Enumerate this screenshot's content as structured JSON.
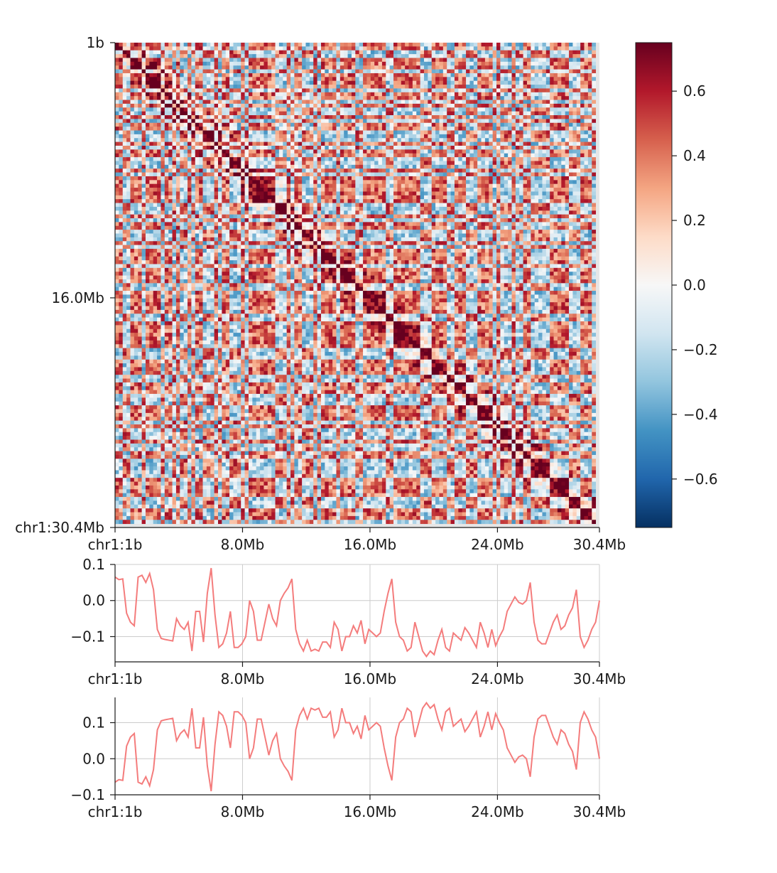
{
  "chart_data": [
    {
      "type": "heatmap",
      "title": "",
      "region": {
        "chrom": "chr1",
        "start_bp": 1,
        "end_bp": 30400000
      },
      "y_tick_labels": [
        "1b",
        "16.0Mb",
        "chr1:30.4Mb"
      ],
      "y_tick_values_mb": [
        0,
        16.0,
        30.4
      ],
      "x_tick_labels": [
        "chr1:1b",
        "8.0Mb",
        "16.0Mb",
        "24.0Mb",
        "30.4Mb"
      ],
      "x_tick_values_mb": [
        0,
        8.0,
        16.0,
        24.0,
        30.4
      ],
      "grid": false,
      "colorscale": "RdBu_r",
      "colorbar": {
        "position": "right",
        "vmin": -0.75,
        "vmax": 0.75,
        "ticks": [
          0.6,
          0.4,
          0.2,
          0.0,
          -0.2,
          -0.4,
          -0.6
        ],
        "tick_labels": [
          "0.6",
          "0.4",
          "0.2",
          "0.0",
          "−0.2",
          "−0.4",
          "−0.6"
        ]
      },
      "bin_count": 127,
      "compartment_pattern": [
        1,
        1,
        0,
        0,
        1,
        1,
        1,
        0,
        1,
        1,
        1,
        1,
        0,
        1,
        1,
        0,
        1,
        0,
        0,
        1,
        0,
        1,
        1,
        0,
        0,
        0,
        1,
        0,
        1,
        1,
        0,
        0,
        0,
        1,
        0,
        1,
        1,
        1,
        1,
        1,
        1,
        1,
        0,
        0,
        0,
        1,
        0,
        1,
        1,
        0,
        0,
        0,
        1,
        0,
        1,
        1,
        1,
        1,
        0,
        1,
        1,
        1,
        1,
        0,
        0,
        1,
        1,
        1,
        1,
        1,
        1,
        0,
        0,
        1,
        1,
        1,
        1,
        1,
        1,
        1,
        0,
        0,
        0,
        1,
        1,
        1,
        1,
        0,
        0,
        1,
        1,
        1,
        0,
        0,
        0,
        1,
        1,
        1,
        1,
        0,
        1,
        0,
        0,
        0,
        1,
        0,
        0,
        1,
        1,
        0,
        0,
        0,
        0,
        0,
        1,
        1,
        1,
        1,
        1,
        0,
        0,
        0,
        1,
        1,
        1,
        0,
        0
      ]
    },
    {
      "type": "line",
      "series": [
        {
          "values": [
            0.065,
            0.058,
            0.06,
            -0.035,
            -0.06,
            -0.07,
            0.065,
            0.07,
            0.05,
            0.075,
            0.03,
            -0.08,
            -0.105,
            -0.108,
            -0.11,
            -0.112,
            -0.05,
            -0.07,
            -0.08,
            -0.06,
            -0.14,
            -0.03,
            -0.03,
            -0.115,
            0.02,
            0.09,
            -0.04,
            -0.13,
            -0.12,
            -0.09,
            -0.03,
            -0.13,
            -0.13,
            -0.12,
            -0.1,
            0.0,
            -0.03,
            -0.11,
            -0.11,
            -0.06,
            -0.01,
            -0.05,
            -0.07,
            0.0,
            0.02,
            0.035,
            0.06,
            -0.08,
            -0.12,
            -0.14,
            -0.11,
            -0.14,
            -0.135,
            -0.14,
            -0.115,
            -0.115,
            -0.13,
            -0.06,
            -0.08,
            -0.14,
            -0.1,
            -0.1,
            -0.07,
            -0.09,
            -0.055,
            -0.12,
            -0.08,
            -0.09,
            -0.1,
            -0.09,
            -0.03,
            0.02,
            0.06,
            -0.06,
            -0.1,
            -0.11,
            -0.14,
            -0.13,
            -0.06,
            -0.1,
            -0.14,
            -0.155,
            -0.14,
            -0.15,
            -0.11,
            -0.08,
            -0.13,
            -0.14,
            -0.09,
            -0.1,
            -0.11,
            -0.075,
            -0.09,
            -0.11,
            -0.13,
            -0.06,
            -0.09,
            -0.13,
            -0.08,
            -0.125,
            -0.1,
            -0.08,
            -0.03,
            -0.01,
            0.01,
            -0.005,
            -0.01,
            0.0,
            0.05,
            -0.06,
            -0.11,
            -0.12,
            -0.12,
            -0.09,
            -0.06,
            -0.04,
            -0.08,
            -0.07,
            -0.04,
            -0.02,
            0.03,
            -0.1,
            -0.13,
            -0.11,
            -0.08,
            -0.06,
            0.0
          ]
        }
      ],
      "x_tick_labels": [
        "chr1:1b",
        "8.0Mb",
        "16.0Mb",
        "24.0Mb",
        "30.4Mb"
      ],
      "x_tick_values_mb": [
        0,
        8.0,
        16.0,
        24.0,
        30.4
      ],
      "y_tick_labels": [
        "0.1",
        "0.0",
        "−0.1"
      ],
      "y_tick_values": [
        0.1,
        0.0,
        -0.1
      ],
      "ylim": [
        -0.17,
        0.1
      ],
      "grid": true,
      "line_color": "#f47c7c"
    },
    {
      "type": "line",
      "series": [
        {
          "values": [
            -0.065,
            -0.058,
            -0.06,
            0.035,
            0.06,
            0.07,
            -0.065,
            -0.07,
            -0.05,
            -0.075,
            -0.03,
            0.08,
            0.105,
            0.108,
            0.11,
            0.112,
            0.05,
            0.07,
            0.08,
            0.06,
            0.14,
            0.03,
            0.03,
            0.115,
            -0.02,
            -0.09,
            0.04,
            0.13,
            0.12,
            0.09,
            0.03,
            0.13,
            0.13,
            0.12,
            0.1,
            0.0,
            0.03,
            0.11,
            0.11,
            0.06,
            0.01,
            0.05,
            0.07,
            0.0,
            -0.02,
            -0.035,
            -0.06,
            0.08,
            0.12,
            0.14,
            0.11,
            0.14,
            0.135,
            0.14,
            0.115,
            0.115,
            0.13,
            0.06,
            0.08,
            0.14,
            0.1,
            0.1,
            0.07,
            0.09,
            0.055,
            0.12,
            0.08,
            0.09,
            0.1,
            0.09,
            0.03,
            -0.02,
            -0.06,
            0.06,
            0.1,
            0.11,
            0.14,
            0.13,
            0.06,
            0.1,
            0.14,
            0.155,
            0.14,
            0.15,
            0.11,
            0.08,
            0.13,
            0.14,
            0.09,
            0.1,
            0.11,
            0.075,
            0.09,
            0.11,
            0.13,
            0.06,
            0.09,
            0.13,
            0.08,
            0.125,
            0.1,
            0.08,
            0.03,
            0.01,
            -0.01,
            0.005,
            0.01,
            0.0,
            -0.05,
            0.06,
            0.11,
            0.12,
            0.12,
            0.09,
            0.06,
            0.04,
            0.08,
            0.07,
            0.04,
            0.02,
            -0.03,
            0.1,
            0.13,
            0.11,
            0.08,
            0.06,
            0.0
          ]
        }
      ],
      "x_tick_labels": [
        "chr1:1b",
        "8.0Mb",
        "16.0Mb",
        "24.0Mb",
        "30.4Mb"
      ],
      "x_tick_values_mb": [
        0,
        8.0,
        16.0,
        24.0,
        30.4
      ],
      "y_tick_labels": [
        "0.1",
        "0.0",
        "−0.1"
      ],
      "y_tick_values": [
        0.1,
        0.0,
        -0.1
      ],
      "ylim": [
        -0.1,
        0.17
      ],
      "grid": true,
      "line_color": "#f47c7c"
    }
  ]
}
